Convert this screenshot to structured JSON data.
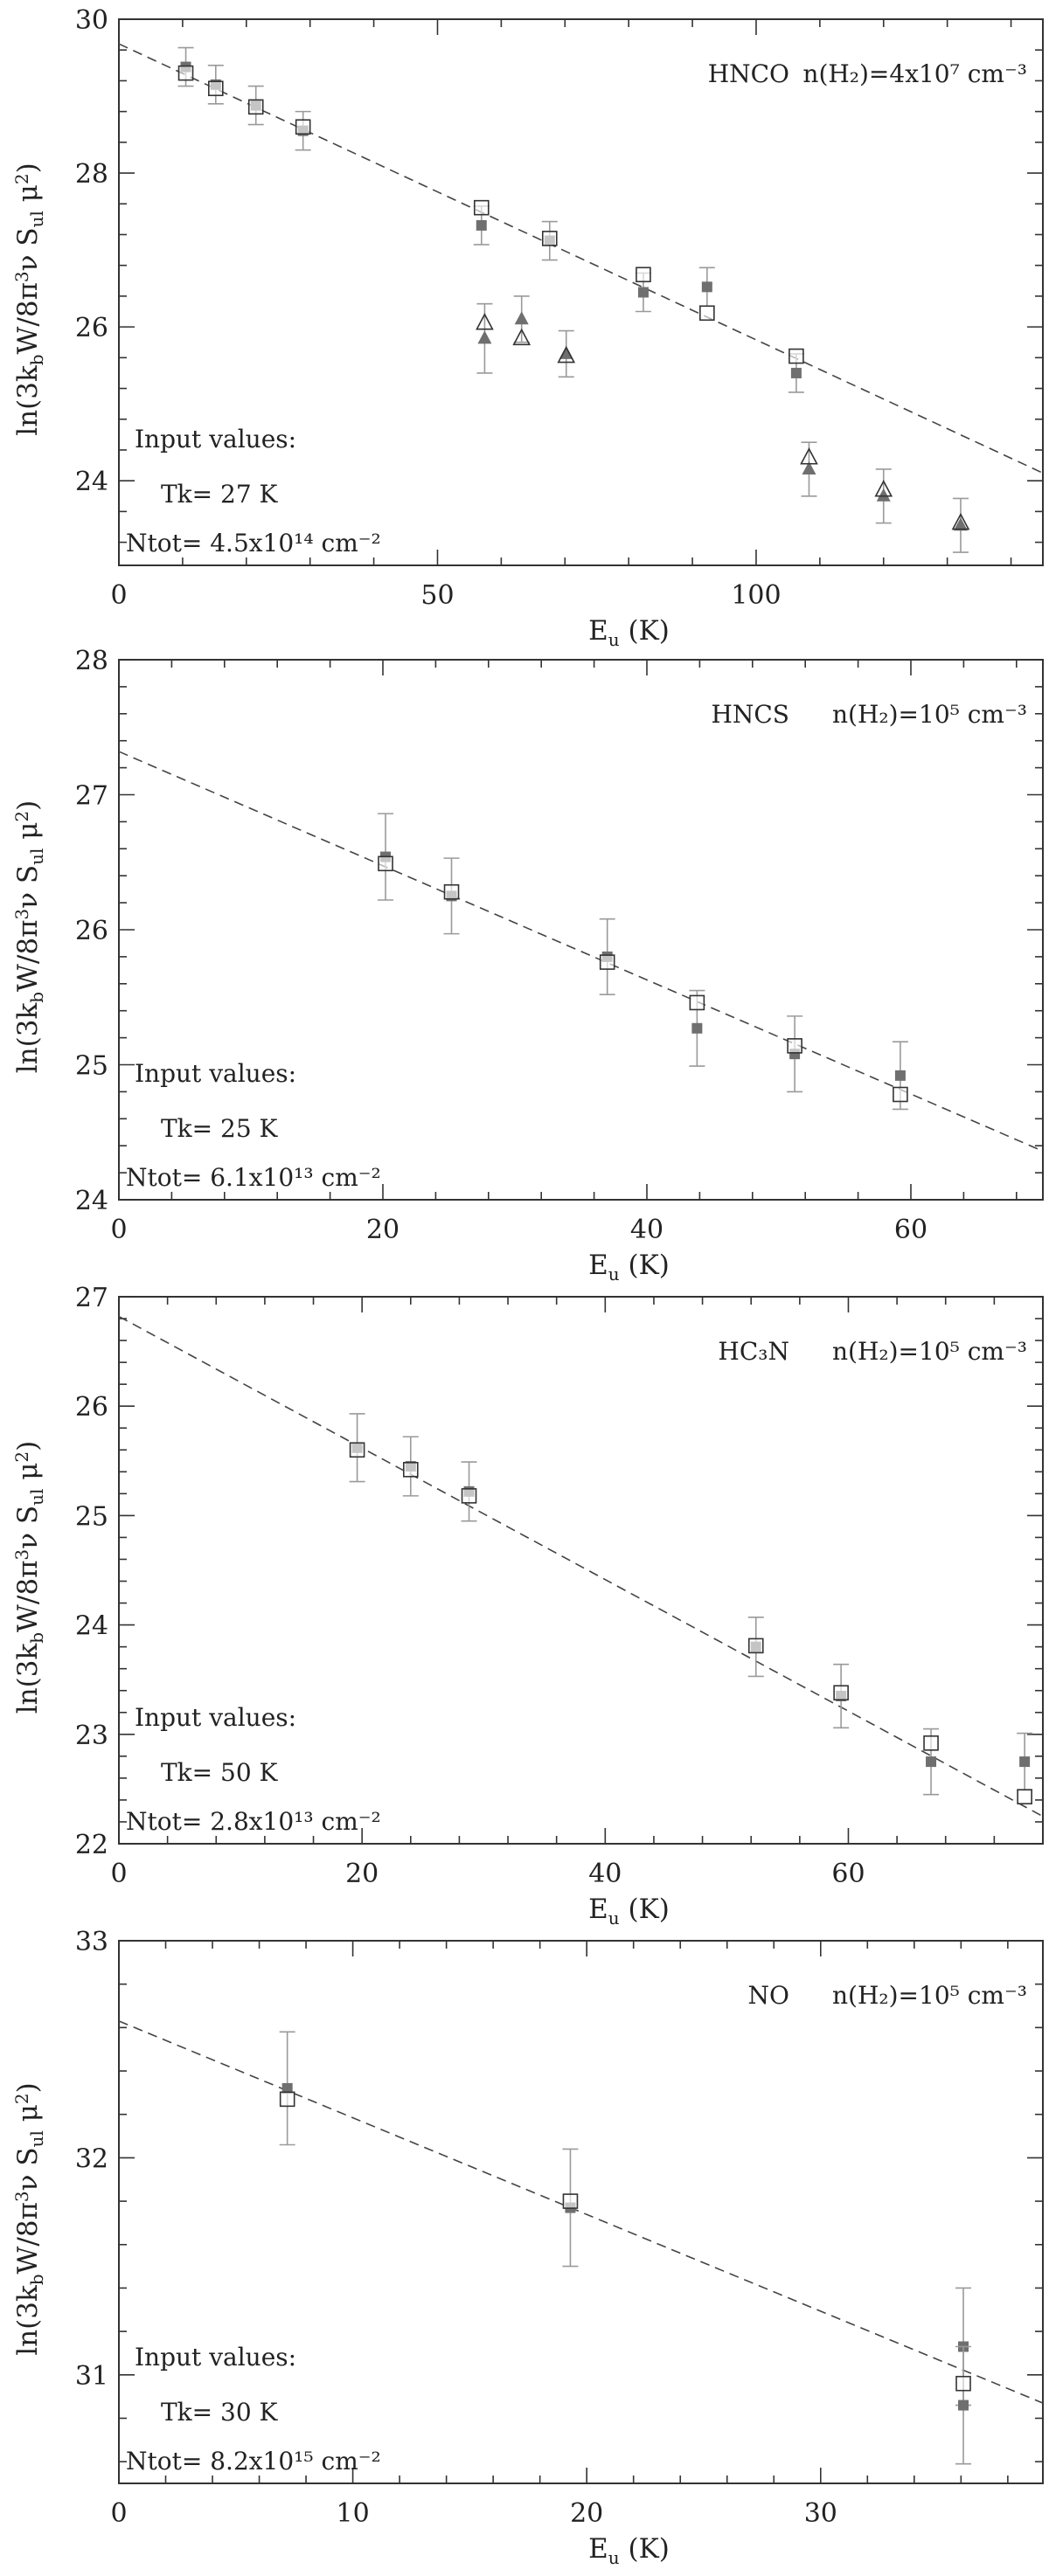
{
  "chart_data": [
    {
      "type": "scatter",
      "label": {
        "molecule": "HNCO",
        "condition": "n(H₂)=4x10⁷ cm⁻³"
      },
      "xlabel": "Eu (K)",
      "ylabel": "ln(3kbW/8π³ν Sul μ²)",
      "xlim": [
        0,
        145
      ],
      "ylim": [
        22.9,
        30
      ],
      "xticks": [
        0,
        50,
        100
      ],
      "yticks": [
        24,
        26,
        28,
        30
      ],
      "input": {
        "heading": "Input values:",
        "tk": "Tk= 27 K",
        "ntot": "Ntot= 4.5x10¹⁴ cm⁻²"
      },
      "fit_line": {
        "x": [
          0,
          145
        ],
        "y": [
          29.68,
          24.1
        ]
      },
      "observed": [
        {
          "x": 10.5,
          "y": 29.38,
          "err": 0.25
        },
        {
          "x": 15.2,
          "y": 29.15,
          "err": 0.25
        },
        {
          "x": 21.5,
          "y": 28.88,
          "err": 0.25
        },
        {
          "x": 28.9,
          "y": 28.55,
          "err": 0.25
        },
        {
          "x": 56.9,
          "y": 27.32,
          "err": 0.25
        },
        {
          "x": 67.6,
          "y": 27.12,
          "err": 0.25
        },
        {
          "x": 82.3,
          "y": 26.45,
          "err": 0.25
        },
        {
          "x": 92.3,
          "y": 26.52,
          "err": 0.25
        },
        {
          "x": 106.3,
          "y": 25.4,
          "err": 0.25
        }
      ],
      "model": [
        {
          "x": 10.5,
          "y": 29.3
        },
        {
          "x": 15.2,
          "y": 29.1
        },
        {
          "x": 21.5,
          "y": 28.86
        },
        {
          "x": 28.9,
          "y": 28.6
        },
        {
          "x": 56.9,
          "y": 27.55
        },
        {
          "x": 67.6,
          "y": 27.15
        },
        {
          "x": 82.3,
          "y": 26.68
        },
        {
          "x": 92.3,
          "y": 26.18
        },
        {
          "x": 106.3,
          "y": 25.62
        }
      ],
      "observed_tri": [
        {
          "x": 57.4,
          "y": 25.85,
          "err": 0.45
        },
        {
          "x": 63.2,
          "y": 26.1,
          "err": 0.3
        },
        {
          "x": 70.2,
          "y": 25.65,
          "err": 0.3
        },
        {
          "x": 108.3,
          "y": 24.15,
          "err": 0.35
        },
        {
          "x": 120.0,
          "y": 23.8,
          "err": 0.35
        },
        {
          "x": 132.1,
          "y": 23.42,
          "err": 0.35
        }
      ],
      "model_tri": [
        {
          "x": 57.4,
          "y": 26.05
        },
        {
          "x": 63.2,
          "y": 25.85
        },
        {
          "x": 70.2,
          "y": 25.62
        },
        {
          "x": 108.3,
          "y": 24.3
        },
        {
          "x": 120.0,
          "y": 23.88
        },
        {
          "x": 132.1,
          "y": 23.45
        }
      ]
    },
    {
      "type": "scatter",
      "label": {
        "molecule": "HNCS",
        "condition": "n(H₂)=10⁵ cm⁻³"
      },
      "xlabel": "Eu (K)",
      "ylabel": "ln(3kbW/8π³ν Sul μ²)",
      "xlim": [
        0,
        70
      ],
      "ylim": [
        24,
        28
      ],
      "xticks": [
        0,
        20,
        40,
        60
      ],
      "yticks": [
        24,
        25,
        26,
        27,
        28
      ],
      "input": {
        "heading": "Input values:",
        "tk": "Tk= 25 K",
        "ntot": "Ntot= 6.1x10¹³ cm⁻²"
      },
      "fit_line": {
        "x": [
          0,
          70
        ],
        "y": [
          27.32,
          24.36
        ]
      },
      "observed": [
        {
          "x": 20.2,
          "y": 26.54,
          "err": 0.32
        },
        {
          "x": 25.2,
          "y": 26.25,
          "err": 0.28
        },
        {
          "x": 37.0,
          "y": 25.8,
          "err": 0.28
        },
        {
          "x": 43.8,
          "y": 25.27,
          "err": 0.28
        },
        {
          "x": 51.2,
          "y": 25.08,
          "err": 0.28
        },
        {
          "x": 59.2,
          "y": 24.92,
          "err": 0.25
        }
      ],
      "model": [
        {
          "x": 20.2,
          "y": 26.49
        },
        {
          "x": 25.2,
          "y": 26.28
        },
        {
          "x": 37.0,
          "y": 25.76
        },
        {
          "x": 43.8,
          "y": 25.46
        },
        {
          "x": 51.2,
          "y": 25.14
        },
        {
          "x": 59.2,
          "y": 24.78
        }
      ]
    },
    {
      "type": "scatter",
      "label": {
        "molecule": "HC₃N",
        "condition": "n(H₂)=10⁵ cm⁻³"
      },
      "xlabel": "Eu (K)",
      "ylabel": "ln(3kbW/8π³ν Sul μ²)",
      "xlim": [
        0,
        76
      ],
      "ylim": [
        22,
        27
      ],
      "xticks": [
        0,
        20,
        40,
        60
      ],
      "yticks": [
        22,
        23,
        24,
        25,
        26,
        27
      ],
      "input": {
        "heading": "Input values:",
        "tk": "Tk= 50 K",
        "ntot": "Ntot= 2.8x10¹³ cm⁻²"
      },
      "fit_line": {
        "x": [
          0,
          76
        ],
        "y": [
          26.82,
          22.25
        ]
      },
      "observed": [
        {
          "x": 19.6,
          "y": 25.62,
          "err": 0.31
        },
        {
          "x": 24.0,
          "y": 25.45,
          "err": 0.27
        },
        {
          "x": 28.8,
          "y": 25.22,
          "err": 0.27
        },
        {
          "x": 52.4,
          "y": 23.8,
          "err": 0.27
        },
        {
          "x": 59.4,
          "y": 23.35,
          "err": 0.29
        },
        {
          "x": 66.8,
          "y": 22.75,
          "err": 0.3
        },
        {
          "x": 74.5,
          "y": 22.75,
          "err": 0.26
        }
      ],
      "model": [
        {
          "x": 19.6,
          "y": 25.6
        },
        {
          "x": 24.0,
          "y": 25.42
        },
        {
          "x": 28.8,
          "y": 25.18
        },
        {
          "x": 52.4,
          "y": 23.81
        },
        {
          "x": 59.4,
          "y": 23.38
        },
        {
          "x": 66.8,
          "y": 22.92
        },
        {
          "x": 74.5,
          "y": 22.43
        }
      ]
    },
    {
      "type": "scatter",
      "label": {
        "molecule": "NO",
        "condition": "n(H₂)=10⁵ cm⁻³"
      },
      "xlabel": "Eu (K)",
      "ylabel": "ln(3kbW/8π³ν Sul μ²)",
      "xlim": [
        0,
        39.5
      ],
      "ylim": [
        30.5,
        33
      ],
      "xticks": [
        0,
        10,
        20,
        30
      ],
      "yticks": [
        31,
        32,
        33
      ],
      "input": {
        "heading": "Input values:",
        "tk": "Tk= 30 K",
        "ntot": "Ntot= 8.2x10¹⁵ cm⁻²"
      },
      "fit_line": {
        "x": [
          0,
          39.5
        ],
        "y": [
          32.63,
          30.87
        ]
      },
      "observed": [
        {
          "x": 7.2,
          "y": 32.32,
          "err": 0.26
        },
        {
          "x": 19.3,
          "y": 31.77,
          "err": 0.27
        },
        {
          "x": 36.1,
          "y": 31.13,
          "err": 0.27
        },
        {
          "x": 36.1,
          "y": 30.86,
          "err": 0.27
        }
      ],
      "model": [
        {
          "x": 7.2,
          "y": 32.27
        },
        {
          "x": 19.3,
          "y": 31.8
        },
        {
          "x": 36.1,
          "y": 30.96
        }
      ]
    }
  ]
}
